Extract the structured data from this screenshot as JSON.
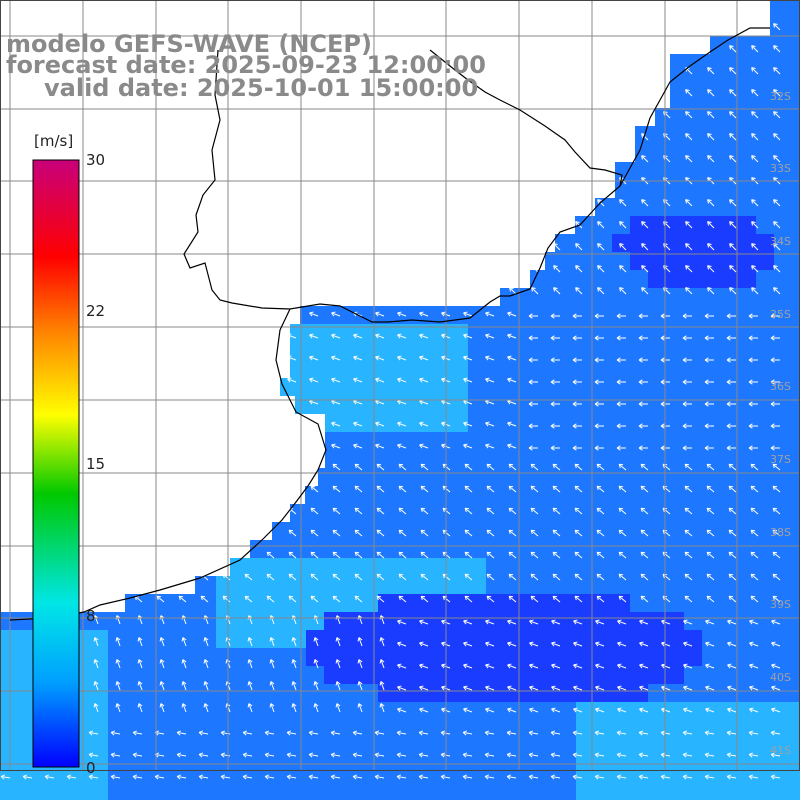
{
  "title": {
    "model": "modelo GEFS-WAVE (NCEP)",
    "forecast": "forecast date: 2025-09-23 12:00:00",
    "valid": "valid date: 2025-10-01 15:00:00"
  },
  "colorbar": {
    "unit": "[m/s]",
    "ticks": [
      "30",
      "22",
      "15",
      "8",
      "0"
    ],
    "colors": [
      "#c8007a",
      "#ff0000",
      "#ff8000",
      "#ffff00",
      "#00c800",
      "#00e6e6",
      "#00a0ff",
      "#0000ff"
    ]
  },
  "lat_labels": [
    "32S",
    "33S",
    "34S",
    "35S",
    "36S",
    "37S",
    "38S",
    "39S",
    "40S",
    "41S"
  ],
  "colors": {
    "land": "#ffffff",
    "coast": "#000000",
    "grid": "#888888",
    "sea_deep": "#1a3cff",
    "sea_mid": "#1e78ff",
    "sea_light": "#28b4ff",
    "arrow": "#ffffff"
  }
}
